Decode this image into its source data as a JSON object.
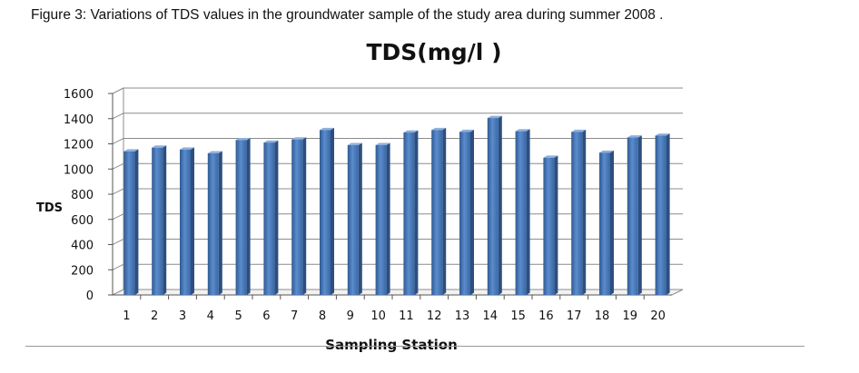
{
  "figure_caption": "Figure 3: Variations of TDS values in the groundwater sample of the study area during summer 2008 .",
  "chart_data": {
    "type": "bar",
    "title": "TDS(mg/l )",
    "xlabel": "Sampling Station",
    "ylabel": "TDS",
    "categories": [
      "1",
      "2",
      "3",
      "4",
      "5",
      "6",
      "7",
      "8",
      "9",
      "10",
      "11",
      "12",
      "13",
      "14",
      "15",
      "16",
      "17",
      "18",
      "19",
      "20"
    ],
    "values": [
      1140,
      1170,
      1155,
      1125,
      1230,
      1210,
      1235,
      1310,
      1190,
      1190,
      1290,
      1310,
      1295,
      1405,
      1300,
      1090,
      1295,
      1130,
      1250,
      1265
    ],
    "ylim": [
      0,
      1600
    ],
    "yticks": [
      "0",
      "200",
      "400",
      "600",
      "800",
      "1000",
      "1200",
      "1400",
      "1600"
    ],
    "grid": true,
    "bar_color": "#4f81bd"
  }
}
